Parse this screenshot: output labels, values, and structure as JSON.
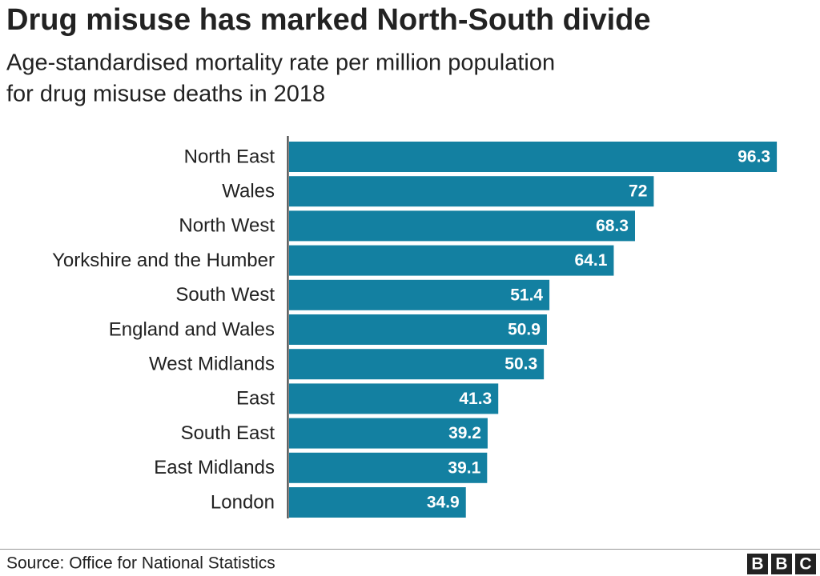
{
  "chart_data": {
    "type": "bar",
    "orientation": "horizontal",
    "title": "Drug misuse has marked North-South divide",
    "subtitle": [
      "Age-standardised mortality rate per million population",
      "for drug misuse deaths in 2018"
    ],
    "categories": [
      "North East",
      "Wales",
      "North West",
      "Yorkshire and the Humber",
      "South West",
      "England and Wales",
      "West Midlands",
      "East",
      "South East",
      "East Midlands",
      "London"
    ],
    "values": [
      96.3,
      72,
      68.3,
      64.1,
      51.4,
      50.9,
      50.3,
      41.3,
      39.2,
      39.1,
      34.9
    ],
    "color": "#1380a1"
  },
  "footer": {
    "source": "Source: Office for National Statistics",
    "logo": [
      "B",
      "B",
      "C"
    ]
  }
}
